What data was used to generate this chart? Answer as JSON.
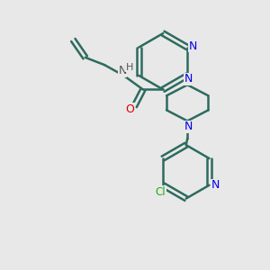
{
  "background_color": "#e8e8e8",
  "bond_color": "#2d6b5e",
  "bond_width": 1.8,
  "nitrogen_color": "#0000ee",
  "oxygen_color": "#dd0000",
  "chlorine_color": "#22aa22",
  "figsize": [
    3.0,
    3.0
  ],
  "dpi": 100,
  "xlim": [
    0,
    10
  ],
  "ylim": [
    0,
    10
  ]
}
